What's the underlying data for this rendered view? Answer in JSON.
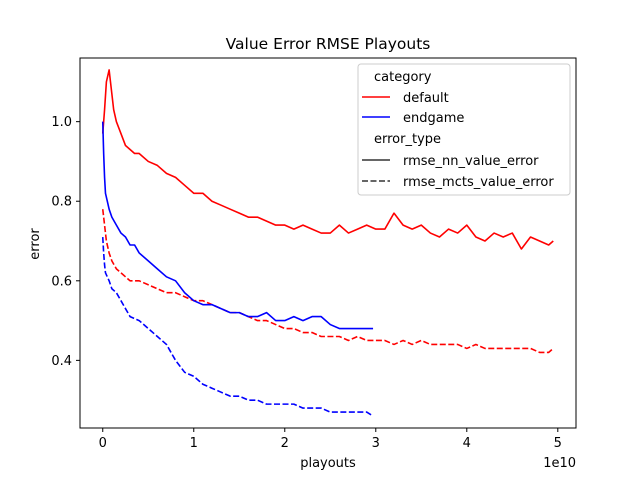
{
  "chart_data": {
    "type": "line",
    "title": "Value Error RMSE Playouts",
    "xlabel": "playouts",
    "ylabel": "error",
    "x_offset_label": "1e10",
    "x_scale": 10000000000,
    "xlim": [
      -0.25,
      5.2
    ],
    "ylim": [
      0.23,
      1.16
    ],
    "xticks": [
      0,
      1,
      2,
      3,
      4,
      5
    ],
    "xtick_labels": [
      "0",
      "1",
      "2",
      "3",
      "4",
      "5"
    ],
    "yticks": [
      0.4,
      0.6,
      0.8,
      1.0
    ],
    "ytick_labels": [
      "0.4",
      "0.6",
      "0.8",
      "1.0"
    ],
    "grid": false,
    "legend": {
      "placement": "top-right",
      "group_titles": [
        "category",
        "error_type"
      ],
      "category_entries": [
        {
          "label": "default",
          "color": "#ff0000"
        },
        {
          "label": "endgame",
          "color": "#0000ff"
        }
      ],
      "style_entries": [
        {
          "label": "rmse_nn_value_error",
          "dash": "solid"
        },
        {
          "label": "rmse_mcts_value_error",
          "dash": "dashed"
        }
      ]
    },
    "series": [
      {
        "name": "default · rmse_nn_value_error",
        "color": "#ff0000",
        "dash": "solid",
        "x": [
          0.0,
          0.02,
          0.04,
          0.07,
          0.1,
          0.12,
          0.15,
          0.2,
          0.25,
          0.3,
          0.35,
          0.4,
          0.5,
          0.6,
          0.7,
          0.8,
          0.9,
          1.0,
          1.1,
          1.2,
          1.3,
          1.4,
          1.5,
          1.6,
          1.7,
          1.8,
          1.9,
          2.0,
          2.1,
          2.2,
          2.3,
          2.4,
          2.5,
          2.6,
          2.7,
          2.8,
          2.9,
          3.0,
          3.1,
          3.2,
          3.3,
          3.4,
          3.5,
          3.6,
          3.7,
          3.8,
          3.9,
          4.0,
          4.1,
          4.2,
          4.3,
          4.4,
          4.5,
          4.6,
          4.7,
          4.8,
          4.9,
          4.95
        ],
        "y": [
          0.97,
          1.03,
          1.1,
          1.13,
          1.07,
          1.03,
          1.0,
          0.97,
          0.94,
          0.93,
          0.92,
          0.92,
          0.9,
          0.89,
          0.87,
          0.86,
          0.84,
          0.82,
          0.82,
          0.8,
          0.79,
          0.78,
          0.77,
          0.76,
          0.76,
          0.75,
          0.74,
          0.74,
          0.73,
          0.74,
          0.73,
          0.72,
          0.72,
          0.74,
          0.72,
          0.73,
          0.74,
          0.73,
          0.73,
          0.77,
          0.74,
          0.73,
          0.74,
          0.72,
          0.71,
          0.73,
          0.72,
          0.74,
          0.71,
          0.7,
          0.72,
          0.71,
          0.72,
          0.68,
          0.71,
          0.7,
          0.69,
          0.7
        ]
      },
      {
        "name": "default · rmse_mcts_value_error",
        "color": "#ff0000",
        "dash": "dashed",
        "x": [
          0.0,
          0.02,
          0.04,
          0.07,
          0.1,
          0.15,
          0.2,
          0.25,
          0.3,
          0.4,
          0.5,
          0.6,
          0.7,
          0.8,
          0.9,
          1.0,
          1.1,
          1.2,
          1.3,
          1.4,
          1.5,
          1.6,
          1.7,
          1.8,
          1.9,
          2.0,
          2.1,
          2.2,
          2.3,
          2.4,
          2.5,
          2.6,
          2.7,
          2.8,
          2.9,
          3.0,
          3.1,
          3.2,
          3.3,
          3.4,
          3.5,
          3.6,
          3.7,
          3.8,
          3.9,
          4.0,
          4.1,
          4.2,
          4.3,
          4.4,
          4.5,
          4.6,
          4.7,
          4.8,
          4.9,
          4.95
        ],
        "y": [
          0.78,
          0.74,
          0.7,
          0.67,
          0.65,
          0.63,
          0.62,
          0.61,
          0.6,
          0.6,
          0.59,
          0.58,
          0.57,
          0.57,
          0.56,
          0.55,
          0.55,
          0.54,
          0.53,
          0.52,
          0.52,
          0.51,
          0.5,
          0.5,
          0.49,
          0.48,
          0.48,
          0.47,
          0.47,
          0.46,
          0.46,
          0.46,
          0.45,
          0.46,
          0.45,
          0.45,
          0.45,
          0.44,
          0.45,
          0.44,
          0.45,
          0.44,
          0.44,
          0.44,
          0.44,
          0.43,
          0.44,
          0.43,
          0.43,
          0.43,
          0.43,
          0.43,
          0.43,
          0.42,
          0.42,
          0.43
        ]
      },
      {
        "name": "endgame · rmse_nn_value_error",
        "color": "#0000ff",
        "dash": "solid",
        "x": [
          0.0,
          0.01,
          0.02,
          0.03,
          0.05,
          0.07,
          0.1,
          0.15,
          0.2,
          0.25,
          0.3,
          0.35,
          0.4,
          0.5,
          0.6,
          0.7,
          0.8,
          0.9,
          1.0,
          1.1,
          1.2,
          1.3,
          1.4,
          1.5,
          1.6,
          1.7,
          1.8,
          1.9,
          2.0,
          2.1,
          2.2,
          2.3,
          2.4,
          2.5,
          2.6,
          2.7,
          2.8,
          2.9,
          2.97
        ],
        "y": [
          1.0,
          0.92,
          0.86,
          0.82,
          0.8,
          0.78,
          0.76,
          0.74,
          0.72,
          0.71,
          0.69,
          0.69,
          0.67,
          0.65,
          0.63,
          0.61,
          0.6,
          0.57,
          0.55,
          0.54,
          0.54,
          0.53,
          0.52,
          0.52,
          0.51,
          0.51,
          0.52,
          0.5,
          0.5,
          0.51,
          0.5,
          0.51,
          0.51,
          0.49,
          0.48,
          0.48,
          0.48,
          0.48,
          0.48
        ]
      },
      {
        "name": "endgame · rmse_mcts_value_error",
        "color": "#0000ff",
        "dash": "dashed",
        "x": [
          0.0,
          0.01,
          0.02,
          0.03,
          0.05,
          0.07,
          0.1,
          0.15,
          0.2,
          0.3,
          0.4,
          0.5,
          0.6,
          0.7,
          0.8,
          0.9,
          1.0,
          1.1,
          1.2,
          1.3,
          1.4,
          1.5,
          1.6,
          1.7,
          1.8,
          1.9,
          2.0,
          2.1,
          2.2,
          2.3,
          2.4,
          2.5,
          2.6,
          2.7,
          2.8,
          2.9,
          2.97
        ],
        "y": [
          0.71,
          0.67,
          0.64,
          0.62,
          0.61,
          0.6,
          0.58,
          0.57,
          0.55,
          0.51,
          0.5,
          0.48,
          0.46,
          0.44,
          0.4,
          0.37,
          0.36,
          0.34,
          0.33,
          0.32,
          0.31,
          0.31,
          0.3,
          0.3,
          0.29,
          0.29,
          0.29,
          0.29,
          0.28,
          0.28,
          0.28,
          0.27,
          0.27,
          0.27,
          0.27,
          0.27,
          0.26
        ]
      }
    ]
  }
}
